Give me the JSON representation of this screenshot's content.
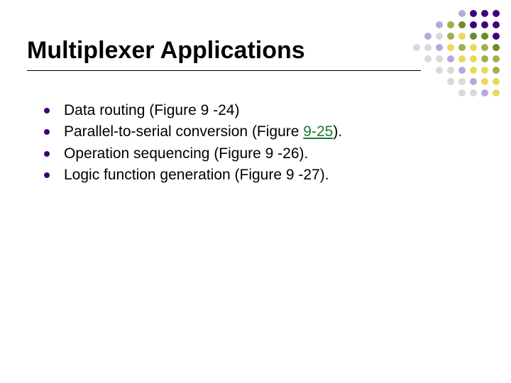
{
  "title": "Multiplexer Applications",
  "bullets": [
    {
      "pre": "Data routing  (Figure 9 -24)",
      "link": "",
      "post": ""
    },
    {
      "pre": "Parallel-to-serial conversion (Figure ",
      "link": "9-25",
      "post": ")."
    },
    {
      "pre": "Operation sequencing (Figure 9 -26).",
      "link": "",
      "post": ""
    },
    {
      "pre": "Logic function generation (Figure 9 -27).",
      "link": "",
      "post": ""
    }
  ],
  "colors": {
    "bullet": "#3d047a",
    "link": "#197b30",
    "text": "#000000",
    "background": "#ffffff"
  },
  "deco_palette": {
    "purple_dark": "#3d047a",
    "purple_light": "#b9a6e0",
    "green_dark": "#6f8a2e",
    "green_olive": "#9fb04a",
    "yellow": "#e8d95a",
    "gray": "#d9d9d9",
    "empty": ""
  },
  "deco_grid": [
    [
      "empty",
      "empty",
      "empty",
      "empty",
      "purple_light",
      "purple_dark",
      "purple_dark",
      "purple_dark"
    ],
    [
      "empty",
      "empty",
      "purple_light",
      "green_olive",
      "green_dark",
      "purple_dark",
      "purple_dark",
      "purple_dark"
    ],
    [
      "empty",
      "purple_light",
      "gray",
      "green_olive",
      "yellow",
      "green_dark",
      "green_dark",
      "purple_dark"
    ],
    [
      "gray",
      "gray",
      "purple_light",
      "yellow",
      "green_olive",
      "yellow",
      "green_olive",
      "green_dark"
    ],
    [
      "empty",
      "gray",
      "gray",
      "purple_light",
      "yellow",
      "yellow",
      "green_olive",
      "green_olive"
    ],
    [
      "empty",
      "empty",
      "gray",
      "gray",
      "purple_light",
      "yellow",
      "yellow",
      "green_olive"
    ],
    [
      "empty",
      "empty",
      "empty",
      "gray",
      "gray",
      "purple_light",
      "yellow",
      "yellow"
    ],
    [
      "empty",
      "empty",
      "empty",
      "empty",
      "gray",
      "gray",
      "purple_light",
      "yellow"
    ]
  ]
}
